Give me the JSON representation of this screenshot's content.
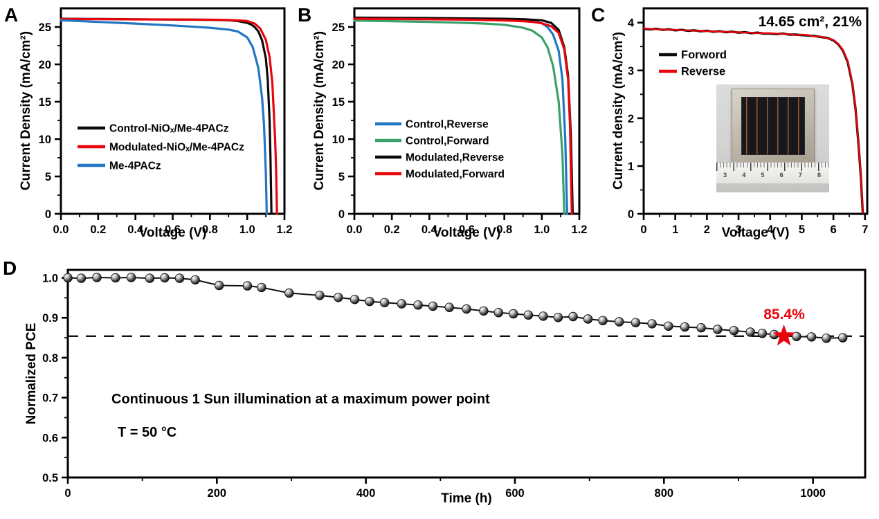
{
  "panel_labels": {
    "a": "A",
    "b": "B",
    "c": "C",
    "d": "D"
  },
  "chart_data": [
    {
      "id": "A",
      "type": "line",
      "xlabel": "Voltage (V)",
      "ylabel": "Current Density (mA/cm²)",
      "xlim": [
        0,
        1.2
      ],
      "ylim": [
        0,
        27.5
      ],
      "xticks": [
        0,
        0.2,
        0.4,
        0.6,
        0.8,
        1.0,
        1.2
      ],
      "xtick_labels": [
        "0.0",
        "0.2",
        "0.4",
        "0.6",
        "0.8",
        "1.0",
        "1.2"
      ],
      "x_minor_step": 0.1,
      "yticks": [
        0,
        5,
        10,
        15,
        20,
        25
      ],
      "ytick_labels": [
        "0",
        "5",
        "10",
        "15",
        "20",
        "25"
      ],
      "y_minor_step": 2.5,
      "grid": false,
      "legend_position": "middle-left",
      "series": [
        {
          "name": "Control-NiOₓ/Me-4PACz",
          "color": "#0a0a0a",
          "x": [
            0,
            0.2,
            0.4,
            0.6,
            0.8,
            0.9,
            0.95,
            1.0,
            1.02,
            1.04,
            1.06,
            1.08,
            1.1,
            1.11,
            1.12,
            1.125,
            1.13
          ],
          "y": [
            26.1,
            26.07,
            26.04,
            26.0,
            25.96,
            25.9,
            25.8,
            25.55,
            25.35,
            25.0,
            24.4,
            23.2,
            20.8,
            18.0,
            12.5,
            7.5,
            0
          ]
        },
        {
          "name": "Modulated-NiOₓ/Me-4PACz",
          "color": "#e8040c",
          "x": [
            0,
            0.2,
            0.4,
            0.6,
            0.8,
            0.9,
            0.95,
            1.0,
            1.04,
            1.07,
            1.1,
            1.12,
            1.135,
            1.15,
            1.155,
            1.16
          ],
          "y": [
            26.08,
            26.05,
            26.02,
            26.0,
            25.97,
            25.93,
            25.88,
            25.8,
            25.45,
            24.8,
            23.3,
            21.0,
            17.5,
            10.0,
            6.0,
            0
          ]
        },
        {
          "name": "Me-4PACz",
          "color": "#2176c4",
          "x": [
            0,
            0.2,
            0.4,
            0.6,
            0.8,
            0.9,
            0.95,
            1.0,
            1.03,
            1.06,
            1.08,
            1.09,
            1.1,
            1.105
          ],
          "y": [
            25.9,
            25.68,
            25.45,
            25.2,
            24.9,
            24.65,
            24.4,
            23.6,
            22.3,
            19.5,
            15.5,
            12.0,
            5.5,
            0
          ]
        }
      ]
    },
    {
      "id": "B",
      "type": "line",
      "xlabel": "Voltage (V)",
      "ylabel": "Current Density (mA/cm²)",
      "xlim": [
        0,
        1.2
      ],
      "ylim": [
        0,
        27.5
      ],
      "xticks": [
        0,
        0.2,
        0.4,
        0.6,
        0.8,
        1.0,
        1.2
      ],
      "xtick_labels": [
        "0.0",
        "0.2",
        "0.4",
        "0.6",
        "0.8",
        "1.0",
        "1.2"
      ],
      "x_minor_step": 0.1,
      "yticks": [
        0,
        5,
        10,
        15,
        20,
        25
      ],
      "ytick_labels": [
        "0",
        "5",
        "10",
        "15",
        "20",
        "25"
      ],
      "y_minor_step": 2.5,
      "grid": false,
      "legend_position": "middle-left",
      "series": [
        {
          "name": "Control,Reverse",
          "color": "#2176c4",
          "x": [
            0,
            0.2,
            0.4,
            0.6,
            0.8,
            0.9,
            0.95,
            1.0,
            1.03,
            1.06,
            1.09,
            1.11,
            1.125,
            1.135
          ],
          "y": [
            26.15,
            26.12,
            26.09,
            26.05,
            26.0,
            25.9,
            25.78,
            25.5,
            25.0,
            24.0,
            21.8,
            18.0,
            10.0,
            0
          ]
        },
        {
          "name": "Control,Forward",
          "color": "#3ba06a",
          "x": [
            0,
            0.2,
            0.4,
            0.6,
            0.7,
            0.8,
            0.9,
            0.95,
            1.0,
            1.03,
            1.06,
            1.09,
            1.11,
            1.12
          ],
          "y": [
            25.85,
            25.78,
            25.68,
            25.55,
            25.45,
            25.3,
            24.9,
            24.5,
            23.6,
            22.3,
            19.8,
            15.0,
            8.0,
            0
          ]
        },
        {
          "name": "Modulated,Reverse",
          "color": "#0a0a0a",
          "x": [
            0,
            0.2,
            0.4,
            0.6,
            0.8,
            0.9,
            1.0,
            1.05,
            1.09,
            1.12,
            1.14,
            1.155,
            1.165
          ],
          "y": [
            26.25,
            26.22,
            26.19,
            26.15,
            26.1,
            26.05,
            25.9,
            25.55,
            24.6,
            22.3,
            18.5,
            10.5,
            0
          ]
        },
        {
          "name": "Modulated,Forward",
          "color": "#e8040c",
          "x": [
            0,
            0.2,
            0.4,
            0.6,
            0.8,
            0.9,
            0.95,
            1.0,
            1.05,
            1.09,
            1.12,
            1.14,
            1.15,
            1.16
          ],
          "y": [
            26.1,
            26.07,
            26.03,
            25.98,
            25.88,
            25.78,
            25.68,
            25.5,
            25.1,
            24.2,
            22.0,
            18.0,
            12.0,
            0
          ]
        }
      ]
    },
    {
      "id": "C",
      "type": "line",
      "xlabel": "Voltage (V)",
      "ylabel": "Current density (mA/cm²)",
      "annotation": "14.65 cm², 21%",
      "xlim": [
        0,
        7.07
      ],
      "ylim": [
        0,
        4.3
      ],
      "xticks": [
        0,
        1,
        2,
        3,
        4,
        5,
        6,
        7
      ],
      "xtick_labels": [
        "0",
        "1",
        "2",
        "3",
        "4",
        "5",
        "6",
        "7"
      ],
      "x_minor_step": 0.5,
      "yticks": [
        0,
        1,
        2,
        3,
        4
      ],
      "ytick_labels": [
        "0",
        "1",
        "2",
        "3",
        "4"
      ],
      "y_minor_step": 0.5,
      "grid": false,
      "legend_position": "upper-left",
      "series": [
        {
          "name": "Forword",
          "color": "#0a0a0a",
          "width": 3.4,
          "x": [
            0,
            0.2,
            0.4,
            0.6,
            0.8,
            1.0,
            1.2,
            1.4,
            1.6,
            1.8,
            2.0,
            2.2,
            2.4,
            2.6,
            2.8,
            3.0,
            3.2,
            3.4,
            3.6,
            3.8,
            4.0,
            4.2,
            4.4,
            4.6,
            4.8,
            5.0,
            5.2,
            5.4,
            5.6,
            5.8,
            6.0,
            6.15,
            6.3,
            6.45,
            6.6,
            6.7,
            6.8,
            6.87,
            6.93
          ],
          "y": [
            3.87,
            3.86,
            3.87,
            3.85,
            3.86,
            3.84,
            3.85,
            3.83,
            3.84,
            3.82,
            3.83,
            3.81,
            3.82,
            3.8,
            3.81,
            3.79,
            3.8,
            3.78,
            3.79,
            3.77,
            3.77,
            3.76,
            3.77,
            3.75,
            3.75,
            3.74,
            3.73,
            3.72,
            3.7,
            3.68,
            3.63,
            3.55,
            3.42,
            3.18,
            2.72,
            2.2,
            1.4,
            0.75,
            0
          ]
        },
        {
          "name": "Reverse",
          "color": "#e8040c",
          "width": 2.4,
          "x": [
            0,
            0.2,
            0.4,
            0.6,
            0.8,
            1.0,
            1.2,
            1.4,
            1.6,
            1.8,
            2.0,
            2.2,
            2.4,
            2.6,
            2.8,
            3.0,
            3.2,
            3.4,
            3.6,
            3.8,
            4.0,
            4.2,
            4.4,
            4.6,
            4.8,
            5.0,
            5.2,
            5.4,
            5.6,
            5.8,
            6.0,
            6.15,
            6.3,
            6.45,
            6.6,
            6.7,
            6.8,
            6.87,
            6.93
          ],
          "y": [
            3.88,
            3.87,
            3.86,
            3.86,
            3.85,
            3.85,
            3.84,
            3.84,
            3.83,
            3.83,
            3.82,
            3.82,
            3.81,
            3.81,
            3.8,
            3.8,
            3.79,
            3.79,
            3.78,
            3.78,
            3.78,
            3.77,
            3.76,
            3.76,
            3.74,
            3.75,
            3.74,
            3.71,
            3.71,
            3.67,
            3.64,
            3.56,
            3.43,
            3.2,
            2.74,
            2.22,
            1.42,
            0.77,
            0.02
          ]
        }
      ]
    },
    {
      "id": "D",
      "type": "scatter-line",
      "xlabel": "Time (h)",
      "ylabel": "Normalized PCE",
      "xlim": [
        0,
        1070
      ],
      "ylim": [
        0.5,
        1.02
      ],
      "xticks": [
        0,
        200,
        400,
        600,
        800,
        1000
      ],
      "xtick_labels": [
        "0",
        "200",
        "400",
        "600",
        "800",
        "1000"
      ],
      "x_minor_step": 100,
      "yticks": [
        0.5,
        0.6,
        0.7,
        0.8,
        0.9,
        1.0
      ],
      "ytick_labels": [
        "0.5",
        "0.6",
        "0.7",
        "0.8",
        "0.9",
        "1.0"
      ],
      "y_minor_step": 0.05,
      "grid": false,
      "dashed_line_y": 0.854,
      "star": {
        "x": 961,
        "y": 0.854,
        "label": "85.4%",
        "color": "#e8040c"
      },
      "annotations": [
        "Continuous 1 Sun illumination at a maximum power point",
        "T = 50 °C"
      ],
      "points": {
        "x": [
          0,
          18,
          39,
          64,
          85,
          110,
          130,
          150,
          171,
          203,
          241,
          260,
          297,
          338,
          363,
          385,
          405,
          425,
          448,
          470,
          490,
          512,
          535,
          558,
          578,
          598,
          618,
          638,
          658,
          678,
          698,
          718,
          740,
          762,
          784,
          806,
          828,
          850,
          872,
          894,
          916,
          932,
          948,
          978,
          998,
          1018,
          1040
        ],
        "y": [
          1.0,
          0.999,
          1.001,
          1.0,
          1.001,
          0.999,
          1.0,
          0.999,
          0.995,
          0.981,
          0.98,
          0.976,
          0.962,
          0.956,
          0.951,
          0.946,
          0.941,
          0.938,
          0.935,
          0.932,
          0.929,
          0.926,
          0.922,
          0.917,
          0.913,
          0.91,
          0.907,
          0.904,
          0.901,
          0.903,
          0.897,
          0.893,
          0.89,
          0.888,
          0.885,
          0.879,
          0.877,
          0.875,
          0.871,
          0.868,
          0.864,
          0.861,
          0.858,
          0.853,
          0.852,
          0.849,
          0.85
        ]
      }
    }
  ],
  "inset": {
    "ruler_numbers": [
      "3",
      "4",
      "5",
      "6",
      "7",
      "8"
    ]
  }
}
